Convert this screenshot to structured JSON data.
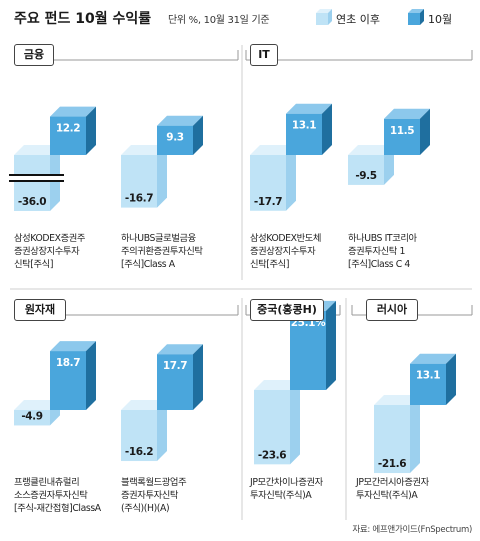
{
  "header": {
    "title": "주요 펀드 10월 수익률",
    "unit_note": "단위 %, 10월 31일 기준",
    "legend": [
      {
        "label": "연초 이후",
        "color": "#bfe3f6"
      },
      {
        "label": "10월",
        "color": "#4aa6dc"
      }
    ]
  },
  "source": "자료: 에프앤가이드(FnSpectrum)",
  "chart_data": [
    {
      "type": "bar",
      "panel": "금융",
      "categories": [
        "삼성KODEX증권주 증권상장지수투자 신탁[주식]",
        "하나UBS글로벌금융 주의귀환증권투자신탁 [주식]Class A"
      ],
      "series": [
        {
          "name": "연초 이후",
          "values": [
            -36.0,
            -16.7
          ]
        },
        {
          "name": "10월",
          "values": [
            12.2,
            9.3
          ]
        }
      ],
      "axis_break": [
        true,
        false
      ]
    },
    {
      "type": "bar",
      "panel": "IT",
      "categories": [
        "삼성KODEX반도체 증권상장지수투자 신탁[주식]",
        "하나UBS IT코리아 증권투자신탁 1 [주식]Class C 4"
      ],
      "series": [
        {
          "name": "연초 이후",
          "values": [
            -17.7,
            -9.5
          ]
        },
        {
          "name": "10월",
          "values": [
            13.1,
            11.5
          ]
        }
      ]
    },
    {
      "type": "bar",
      "panel": "원자재",
      "categories": [
        "프랭클린내츄럴리 소스증권자투자신탁 [주식-재간접형]ClassA",
        "블랙록월드광업주 증권자투자신탁 (주식)(H)(A)"
      ],
      "series": [
        {
          "name": "연초 이후",
          "values": [
            -4.9,
            -16.2
          ]
        },
        {
          "name": "10월",
          "values": [
            18.7,
            17.7
          ]
        }
      ]
    },
    {
      "type": "bar",
      "panel": "중국(홍콩H)",
      "categories": [
        "JP모간차이나증권자 투자신탁(주식)A"
      ],
      "series": [
        {
          "name": "연초 이후",
          "values": [
            -23.6
          ]
        },
        {
          "name": "10월",
          "values": [
            25.1
          ]
        }
      ],
      "value_labels": [
        [
          "-23.6"
        ],
        [
          "25.1%"
        ]
      ]
    },
    {
      "type": "bar",
      "panel": "러시아",
      "categories": [
        "JP모간러시아증권자 투자신탁(주식)A"
      ],
      "series": [
        {
          "name": "연초 이후",
          "values": [
            -21.6
          ]
        },
        {
          "name": "10월",
          "values": [
            13.1
          ]
        }
      ]
    }
  ],
  "fund_labels": [
    "삼성KODEX증권주\n증권상장지수투자\n신탁[주식]",
    "하나UBS글로벌금융\n주의귀환증권투자신탁\n[주식]Class A",
    "삼성KODEX반도체\n증권상장지수투자\n신탁[주식]",
    "하나UBS IT코리아\n증권투자신탁 1\n[주식]Class C 4",
    "프랭클린내츄럴리\n소스증권자투자신탁\n[주식-재간접형]ClassA",
    "블랙록월드광업주\n증권자투자신탁\n(주식)(H)(A)",
    "JP모간차이나증권자\n투자신탁(주식)A",
    "JP모간러시아증권자\n투자신탁(주식)A"
  ]
}
